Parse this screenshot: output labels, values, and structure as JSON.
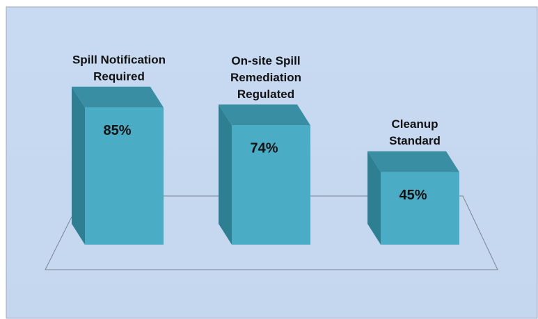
{
  "chart_data": {
    "type": "bar3d",
    "categories": [
      [
        "Spill Notification",
        "Required"
      ],
      [
        "On-site Spill",
        "Remediation",
        "Regulated"
      ],
      [
        "Cleanup",
        "Standard"
      ]
    ],
    "values": [
      85,
      74,
      45
    ],
    "value_labels": [
      "85%",
      "74%",
      "45%"
    ],
    "color": "#4bacc6"
  }
}
